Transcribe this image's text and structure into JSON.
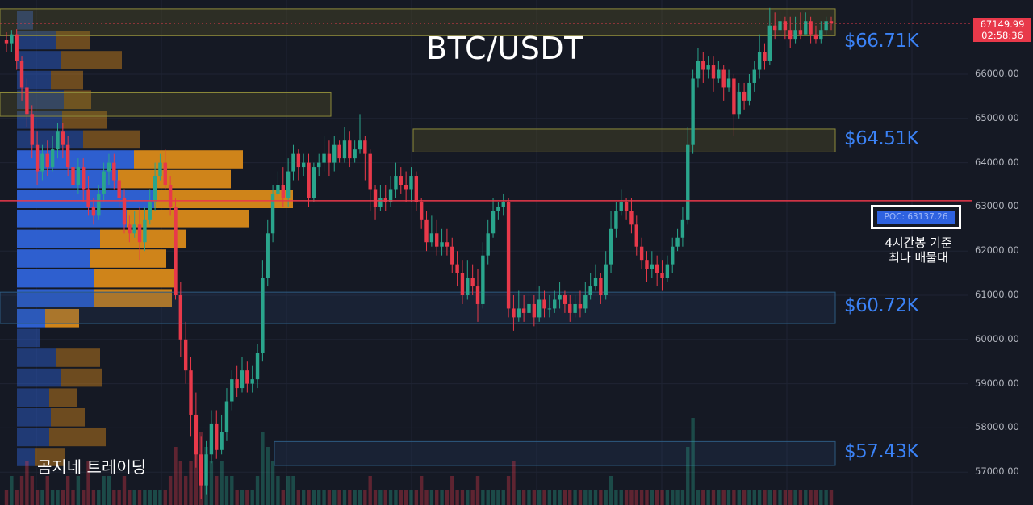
{
  "chart_data": {
    "type": "candlestick",
    "title": "BTC/USDT",
    "brand": "곰지네 트레이딩",
    "y_ticks": [
      "66000.00",
      "65000.00",
      "64000.00",
      "63000.00",
      "62000.00",
      "61000.00",
      "60000.00",
      "59000.00",
      "58000.00",
      "57000.00"
    ],
    "y_tick_values": [
      66000,
      65000,
      64000,
      63000,
      62000,
      61000,
      60000,
      59000,
      58000,
      57000
    ],
    "ylim": [
      56600,
      67950
    ],
    "current_price": {
      "value": "67149.99",
      "timer": "02:58:36",
      "price": 67149.99
    },
    "poc": {
      "label": "POC: 63137.26",
      "price": 63137.26,
      "note_line1": "4시간봉 기준",
      "note_line2": "최다 매물대"
    },
    "levels": [
      {
        "label": "$66.71K",
        "price": 66710
      },
      {
        "label": "$64.51K",
        "price": 64510
      },
      {
        "label": "$60.72K",
        "price": 60720
      },
      {
        "label": "$57.43K",
        "price": 57430
      }
    ],
    "zones": [
      {
        "kind": "supply",
        "top": 67480,
        "bottom": 66870
      },
      {
        "kind": "supply",
        "top": 65590,
        "bottom": 65050
      },
      {
        "kind": "supply",
        "top": 64760,
        "bottom": 64240
      },
      {
        "kind": "demand",
        "top": 61070,
        "bottom": 60360
      },
      {
        "kind": "demand",
        "top": 57690,
        "bottom": 57150
      }
    ],
    "volume_profile": [
      {
        "buy": 20,
        "sell": 0
      },
      {
        "buy": 48,
        "sell": 42
      },
      {
        "buy": 55,
        "sell": 75
      },
      {
        "buy": 42,
        "sell": 40
      },
      {
        "buy": 58,
        "sell": 34
      },
      {
        "buy": 56,
        "sell": 55
      },
      {
        "buy": 82,
        "sell": 70
      },
      {
        "buy": 145,
        "sell": 135
      },
      {
        "buy": 125,
        "sell": 140
      },
      {
        "buy": 170,
        "sell": 172
      },
      {
        "buy": 136,
        "sell": 152
      },
      {
        "buy": 103,
        "sell": 106
      },
      {
        "buy": 90,
        "sell": 95
      },
      {
        "buy": 96,
        "sell": 102
      },
      {
        "buy": 96,
        "sell": 96
      },
      {
        "buy": 35,
        "sell": 42
      },
      {
        "buy": 28,
        "sell": 0
      },
      {
        "buy": 48,
        "sell": 55
      },
      {
        "buy": 55,
        "sell": 50
      },
      {
        "buy": 40,
        "sell": 35
      },
      {
        "buy": 42,
        "sell": 42
      },
      {
        "buy": 40,
        "sell": 70
      },
      {
        "buy": 22,
        "sell": 38
      }
    ],
    "candles": [
      [
        66780,
        66700,
        66950,
        66500
      ],
      [
        66700,
        66900,
        67000,
        66500
      ],
      [
        66900,
        66300,
        67020,
        66100
      ],
      [
        66300,
        65700,
        66400,
        65400
      ],
      [
        65700,
        65100,
        65900,
        64800
      ],
      [
        65100,
        64400,
        65300,
        64100
      ],
      [
        64400,
        63800,
        64700,
        63500
      ],
      [
        63800,
        64200,
        64400,
        63600
      ],
      [
        64200,
        63900,
        64500,
        63700
      ],
      [
        63900,
        64300,
        64600,
        63800
      ],
      [
        64300,
        64700,
        64900,
        64100
      ],
      [
        64700,
        64400,
        64900,
        64100
      ],
      [
        64400,
        63900,
        64600,
        63700
      ],
      [
        63900,
        63500,
        64100,
        63200
      ],
      [
        63500,
        63900,
        64100,
        63300
      ],
      [
        63900,
        63400,
        64100,
        63100
      ],
      [
        63400,
        63000,
        63700,
        62800
      ],
      [
        63000,
        62800,
        63200,
        62600
      ],
      [
        62800,
        63300,
        63500,
        62700
      ],
      [
        63300,
        63800,
        64000,
        63100
      ],
      [
        63800,
        64000,
        64200,
        63500
      ],
      [
        64000,
        63600,
        64200,
        63400
      ],
      [
        63600,
        63200,
        63800,
        63000
      ],
      [
        63200,
        62600,
        63400,
        62400
      ],
      [
        62600,
        62400,
        62800,
        62200
      ],
      [
        62400,
        62600,
        62900,
        62300
      ],
      [
        62600,
        62200,
        63000,
        61800
      ],
      [
        62200,
        62700,
        63000,
        62000
      ],
      [
        62700,
        63100,
        63400,
        62600
      ],
      [
        63100,
        63700,
        64000,
        62900
      ],
      [
        63700,
        64000,
        64200,
        63600
      ],
      [
        64000,
        63500,
        64300,
        63400
      ],
      [
        63500,
        63000,
        63700,
        62800
      ],
      [
        63000,
        61000,
        63200,
        60900
      ],
      [
        61000,
        60000,
        61300,
        59600
      ],
      [
        60000,
        59300,
        60400,
        59000
      ],
      [
        59300,
        58300,
        59600,
        57800
      ],
      [
        58300,
        57400,
        58800,
        57100
      ],
      [
        57400,
        56700,
        57800,
        56400
      ],
      [
        56700,
        57400,
        57700,
        56500
      ],
      [
        57400,
        58100,
        58400,
        57200
      ],
      [
        58100,
        57500,
        58400,
        57300
      ],
      [
        57500,
        57900,
        58300,
        57400
      ],
      [
        57900,
        58600,
        58900,
        57700
      ],
      [
        58600,
        59100,
        59300,
        58400
      ],
      [
        59100,
        58900,
        59400,
        58700
      ],
      [
        58900,
        59300,
        59600,
        58800
      ],
      [
        59300,
        59000,
        59500,
        58800
      ],
      [
        59000,
        59100,
        59400,
        58800
      ],
      [
        59100,
        59700,
        59900,
        58900
      ],
      [
        59700,
        61400,
        61800,
        59500
      ],
      [
        61400,
        62400,
        62700,
        61200
      ],
      [
        62400,
        63300,
        63500,
        62200
      ],
      [
        63300,
        63500,
        63800,
        63200
      ],
      [
        63500,
        63200,
        63900,
        63000
      ],
      [
        63200,
        63800,
        64100,
        63000
      ],
      [
        63800,
        64200,
        64400,
        63600
      ],
      [
        64200,
        63900,
        64300,
        63600
      ],
      [
        63900,
        64000,
        64200,
        63700
      ],
      [
        64000,
        63200,
        64200,
        63000
      ],
      [
        63200,
        63900,
        64000,
        63100
      ],
      [
        63900,
        64000,
        64200,
        63700
      ],
      [
        64000,
        64200,
        64600,
        63800
      ],
      [
        64200,
        64000,
        64500,
        63700
      ],
      [
        64000,
        64400,
        64600,
        63800
      ],
      [
        64400,
        64100,
        64500,
        64000
      ],
      [
        64100,
        64500,
        64800,
        64000
      ],
      [
        64500,
        64100,
        64700,
        63900
      ],
      [
        64100,
        64300,
        64500,
        64000
      ],
      [
        64300,
        64500,
        65100,
        64200
      ],
      [
        64500,
        64200,
        64600,
        63600
      ],
      [
        64200,
        63400,
        64300,
        62900
      ],
      [
        63400,
        63000,
        63500,
        62700
      ],
      [
        63000,
        63200,
        63500,
        62900
      ],
      [
        63200,
        63100,
        63500,
        62900
      ],
      [
        63100,
        63400,
        63700,
        63000
      ],
      [
        63400,
        63700,
        64000,
        63200
      ],
      [
        63700,
        63500,
        63900,
        63300
      ],
      [
        63500,
        63400,
        63800,
        63100
      ],
      [
        63400,
        63700,
        63900,
        63100
      ],
      [
        63700,
        63100,
        63800,
        62900
      ],
      [
        63100,
        62700,
        63200,
        62500
      ],
      [
        62700,
        62200,
        62900,
        62000
      ],
      [
        62200,
        62400,
        62800,
        62100
      ],
      [
        62400,
        62100,
        62700,
        61900
      ],
      [
        62100,
        62200,
        62500,
        61900
      ],
      [
        62200,
        62100,
        62500,
        61900
      ],
      [
        62100,
        61700,
        62300,
        61500
      ],
      [
        61700,
        61500,
        62000,
        61200
      ],
      [
        61500,
        61000,
        61800,
        60800
      ],
      [
        61000,
        61400,
        61800,
        60900
      ],
      [
        61400,
        61200,
        61700,
        61000
      ],
      [
        61200,
        60800,
        61600,
        60400
      ],
      [
        60800,
        61900,
        62200,
        60700
      ],
      [
        61900,
        62400,
        62700,
        61700
      ],
      [
        62400,
        62900,
        63200,
        62300
      ],
      [
        62900,
        63000,
        63100,
        62700
      ],
      [
        63000,
        63100,
        63300,
        62800
      ],
      [
        63100,
        60700,
        63200,
        60500
      ],
      [
        60700,
        60500,
        61000,
        60200
      ],
      [
        60500,
        60700,
        61100,
        60400
      ],
      [
        60700,
        60600,
        61000,
        60400
      ],
      [
        60600,
        60800,
        61100,
        60500
      ],
      [
        60800,
        60500,
        61000,
        60300
      ],
      [
        60500,
        60900,
        61200,
        60400
      ],
      [
        60900,
        60700,
        61100,
        60500
      ],
      [
        60700,
        60700,
        61000,
        60500
      ],
      [
        60700,
        60900,
        61100,
        60600
      ],
      [
        60900,
        61000,
        61300,
        60700
      ],
      [
        61000,
        60800,
        61100,
        60600
      ],
      [
        60800,
        60600,
        61000,
        60400
      ],
      [
        60600,
        60800,
        61000,
        60500
      ],
      [
        60800,
        60700,
        61100,
        60500
      ],
      [
        60700,
        61000,
        61300,
        60600
      ],
      [
        61000,
        61200,
        61500,
        60900
      ],
      [
        61200,
        61400,
        61700,
        61100
      ],
      [
        61400,
        61000,
        61500,
        60800
      ],
      [
        61000,
        61700,
        62000,
        60900
      ],
      [
        61700,
        62500,
        62900,
        61500
      ],
      [
        62500,
        62900,
        63100,
        62300
      ],
      [
        62900,
        63100,
        63400,
        62800
      ],
      [
        63100,
        62900,
        63200,
        62700
      ],
      [
        62900,
        62600,
        63200,
        62400
      ],
      [
        62600,
        62100,
        62800,
        61900
      ],
      [
        62100,
        61800,
        62300,
        61600
      ],
      [
        61800,
        61600,
        62000,
        61300
      ],
      [
        61600,
        61700,
        62000,
        61400
      ],
      [
        61700,
        61500,
        61900,
        61200
      ],
      [
        61500,
        61400,
        61800,
        61100
      ],
      [
        61400,
        61700,
        61900,
        61300
      ],
      [
        61700,
        62100,
        62300,
        61500
      ],
      [
        62100,
        62300,
        62500,
        62000
      ],
      [
        62300,
        62700,
        63000,
        62100
      ],
      [
        62700,
        64400,
        64800,
        62600
      ],
      [
        64400,
        65900,
        66100,
        64200
      ],
      [
        65900,
        66300,
        66600,
        65700
      ],
      [
        66300,
        66100,
        66500,
        65800
      ],
      [
        66100,
        66200,
        66400,
        65900
      ],
      [
        66200,
        65900,
        66400,
        65600
      ],
      [
        65900,
        66100,
        66300,
        65800
      ],
      [
        66100,
        65700,
        66200,
        65400
      ],
      [
        65700,
        65900,
        66100,
        65600
      ],
      [
        65900,
        65100,
        66000,
        64600
      ],
      [
        65100,
        65600,
        65800,
        65000
      ],
      [
        65600,
        65400,
        65800,
        65200
      ],
      [
        65400,
        65800,
        66000,
        65300
      ],
      [
        65800,
        66100,
        66300,
        65600
      ],
      [
        66100,
        66500,
        66900,
        65900
      ],
      [
        66500,
        66300,
        66700,
        66100
      ],
      [
        66300,
        67100,
        67500,
        66200
      ],
      [
        67100,
        67000,
        67400,
        66800
      ],
      [
        67000,
        67200,
        67400,
        66900
      ],
      [
        67200,
        67000,
        67300,
        66800
      ],
      [
        67000,
        66800,
        67300,
        66600
      ],
      [
        66800,
        67000,
        67300,
        66700
      ],
      [
        67000,
        66900,
        67400,
        66800
      ],
      [
        66900,
        67200,
        67400,
        66900
      ],
      [
        67200,
        66900,
        67300,
        66700
      ],
      [
        66900,
        66800,
        67100,
        66700
      ],
      [
        66800,
        67000,
        67200,
        66700
      ],
      [
        67000,
        67200,
        67300,
        66900
      ],
      [
        67200,
        67150,
        67300,
        67000
      ]
    ],
    "volumes": [
      1,
      2,
      1,
      2,
      3,
      2,
      1,
      1,
      2,
      1,
      1,
      1,
      2,
      1,
      2,
      1,
      3,
      1,
      1,
      2,
      2,
      1,
      1,
      2,
      1,
      1,
      1,
      1,
      1,
      1,
      1,
      1,
      2,
      4,
      3,
      2,
      3,
      4,
      5,
      4,
      3,
      2,
      3,
      2,
      2,
      1,
      1,
      1,
      1,
      2,
      5,
      4,
      3,
      2,
      1,
      2,
      2,
      1,
      1,
      1,
      1,
      1,
      1,
      1,
      1,
      1,
      1,
      1,
      1,
      1,
      1,
      2,
      1,
      1,
      1,
      1,
      1,
      1,
      1,
      1,
      1,
      2,
      1,
      1,
      1,
      1,
      1,
      2,
      1,
      1,
      1,
      1,
      2,
      1,
      1,
      1,
      1,
      1,
      2,
      3,
      1,
      1,
      1,
      1,
      1,
      1,
      1,
      1,
      1,
      1,
      1,
      1,
      1,
      1,
      1,
      1,
      1,
      1,
      2,
      1,
      1,
      1,
      1,
      1,
      1,
      1,
      1,
      1,
      1,
      1,
      1,
      1,
      1,
      4,
      6,
      1,
      1,
      1,
      1,
      1,
      1,
      1,
      1,
      1,
      1,
      1,
      1,
      1,
      1,
      1,
      1,
      1,
      1,
      1,
      1,
      1,
      1,
      1,
      1,
      1,
      1,
      1
    ]
  }
}
